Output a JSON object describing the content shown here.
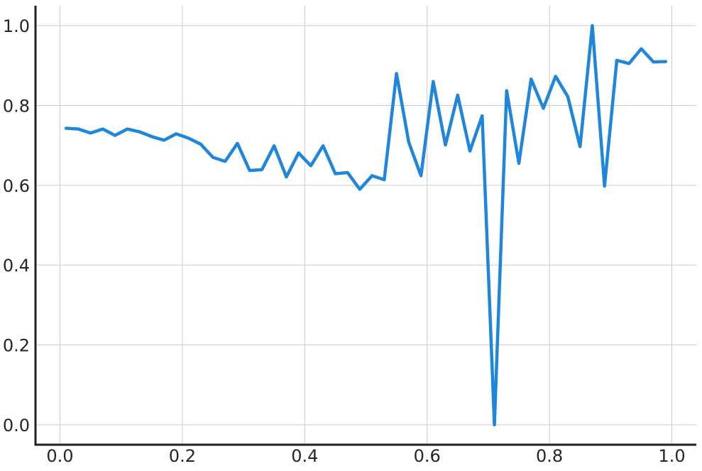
{
  "chart_data": {
    "type": "line",
    "title": "",
    "xlabel": "",
    "ylabel": "",
    "xlim": [
      -0.04,
      1.04
    ],
    "ylim": [
      -0.05,
      1.05
    ],
    "grid": true,
    "x_ticks": [
      0.0,
      0.2,
      0.4,
      0.6,
      0.8,
      1.0
    ],
    "x_tick_labels": [
      "0.0",
      "0.2",
      "0.4",
      "0.6",
      "0.8",
      "1.0"
    ],
    "y_ticks": [
      0.0,
      0.2,
      0.4,
      0.6,
      0.8,
      1.0
    ],
    "y_tick_labels": [
      "0.0",
      "0.2",
      "0.4",
      "0.6",
      "0.8",
      "1.0"
    ],
    "series": [
      {
        "color": "#1f86dc",
        "x": [
          0.01,
          0.03,
          0.05,
          0.07,
          0.09,
          0.11,
          0.13,
          0.15,
          0.17,
          0.19,
          0.21,
          0.23,
          0.25,
          0.27,
          0.29,
          0.31,
          0.33,
          0.35,
          0.37,
          0.39,
          0.41,
          0.43,
          0.45,
          0.47,
          0.49,
          0.51,
          0.53,
          0.55,
          0.57,
          0.59,
          0.61,
          0.63,
          0.65,
          0.67,
          0.69,
          0.71,
          0.73,
          0.75,
          0.77,
          0.79,
          0.81,
          0.83,
          0.85,
          0.87,
          0.89,
          0.91,
          0.93,
          0.95,
          0.97,
          0.99
        ],
        "y": [
          0.743,
          0.741,
          0.731,
          0.741,
          0.725,
          0.741,
          0.734,
          0.722,
          0.713,
          0.729,
          0.718,
          0.703,
          0.67,
          0.66,
          0.705,
          0.637,
          0.639,
          0.699,
          0.621,
          0.681,
          0.649,
          0.699,
          0.629,
          0.632,
          0.59,
          0.624,
          0.614,
          0.88,
          0.708,
          0.624,
          0.86,
          0.701,
          0.826,
          0.686,
          0.774,
          0.0,
          0.837,
          0.655,
          0.866,
          0.793,
          0.873,
          0.822,
          0.697,
          1.0,
          0.598,
          0.913,
          0.905,
          0.942,
          0.909,
          0.91
        ]
      }
    ]
  }
}
